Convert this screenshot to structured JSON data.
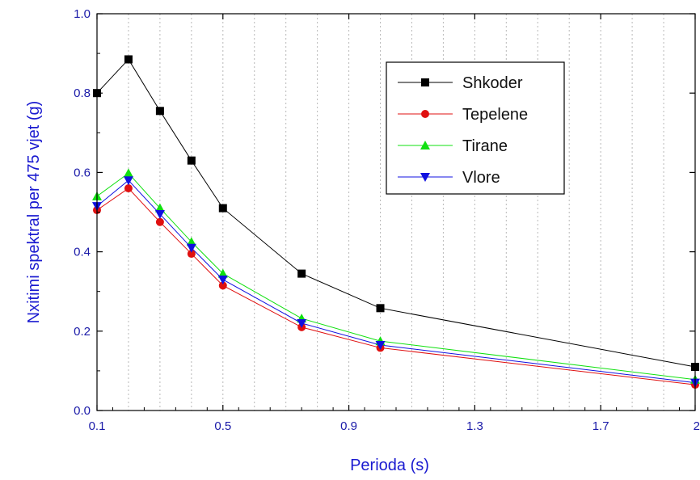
{
  "chart_data": {
    "type": "line",
    "title": "",
    "xlabel": "Perioda (s)",
    "ylabel": "Nxitimi spektral per 475 vjet (g)",
    "xlim": [
      0.1,
      2.0
    ],
    "ylim": [
      0.0,
      1.0
    ],
    "x_ticks": [
      0.1,
      0.5,
      0.9,
      1.3,
      1.7,
      2.0
    ],
    "x_tick_labels": [
      "0.1",
      "0.5",
      "0.9",
      "1.3",
      "1.7",
      "2"
    ],
    "y_ticks": [
      0.0,
      0.2,
      0.4,
      0.6,
      0.8,
      1.0
    ],
    "y_tick_labels": [
      "0.0",
      "0.2",
      "0.4",
      "0.6",
      "0.8",
      "1.0"
    ],
    "grid": "vertical dotted",
    "legend_position": "top-right",
    "x": [
      0.1,
      0.2,
      0.3,
      0.4,
      0.5,
      0.75,
      1.0,
      2.0
    ],
    "series": [
      {
        "name": "Shkoder",
        "color": "#000000",
        "marker": "square",
        "values": [
          0.8,
          0.885,
          0.755,
          0.63,
          0.51,
          0.345,
          0.258,
          0.11
        ]
      },
      {
        "name": "Tepelene",
        "color": "#e01010",
        "marker": "circle",
        "values": [
          0.505,
          0.56,
          0.475,
          0.395,
          0.315,
          0.21,
          0.158,
          0.065
        ]
      },
      {
        "name": "Tirane",
        "color": "#10e010",
        "marker": "triangle-up",
        "values": [
          0.54,
          0.598,
          0.51,
          0.425,
          0.345,
          0.232,
          0.175,
          0.078
        ]
      },
      {
        "name": "Vlore",
        "color": "#1010e0",
        "marker": "triangle-down",
        "values": [
          0.515,
          0.58,
          0.495,
          0.41,
          0.33,
          0.22,
          0.165,
          0.07
        ]
      }
    ]
  }
}
